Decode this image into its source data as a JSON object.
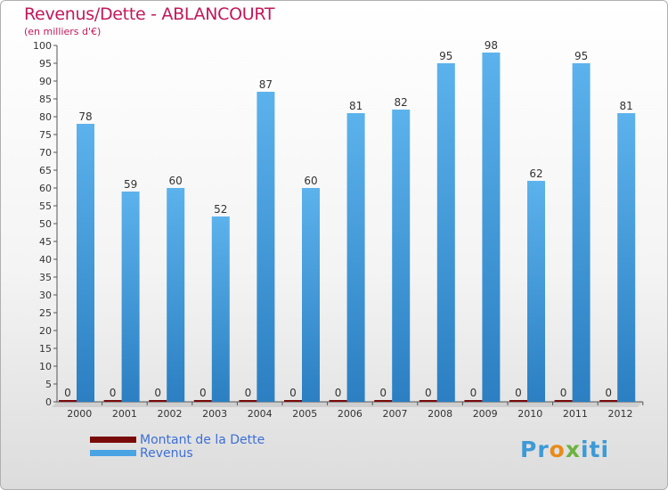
{
  "header": {
    "title": "Revenus/Dette - ABLANCOURT",
    "subtitle": "(en milliers d'€)"
  },
  "chart_data": {
    "type": "bar",
    "title": "Revenus/Dette - ABLANCOURT",
    "subtitle": "(en milliers d'€)",
    "xlabel": "",
    "ylabel": "",
    "ylim": [
      0,
      100
    ],
    "ytick_step": 5,
    "grid": false,
    "legend_position": "bottom-left",
    "categories": [
      "2000",
      "2001",
      "2002",
      "2003",
      "2004",
      "2005",
      "2006",
      "2007",
      "2008",
      "2009",
      "2010",
      "2011",
      "2012"
    ],
    "series": [
      {
        "name": "Montant de la Dette",
        "color": "#7a0a0a",
        "values": [
          0,
          0,
          0,
          0,
          0,
          0,
          0,
          0,
          0,
          0,
          0,
          0,
          0
        ]
      },
      {
        "name": "Revenus",
        "color": "#4aa3e3",
        "values": [
          78,
          59,
          60,
          52,
          87,
          60,
          81,
          82,
          95,
          98,
          62,
          95,
          81
        ]
      }
    ]
  },
  "legend": {
    "items": [
      {
        "label": "Montant de la Dette",
        "color": "#7a0a0a"
      },
      {
        "label": "Revenus",
        "color": "#4aa3e3"
      }
    ]
  },
  "logo": {
    "p1": "Pr",
    "p2": "o",
    "p3": "x",
    "p4": "iti"
  }
}
